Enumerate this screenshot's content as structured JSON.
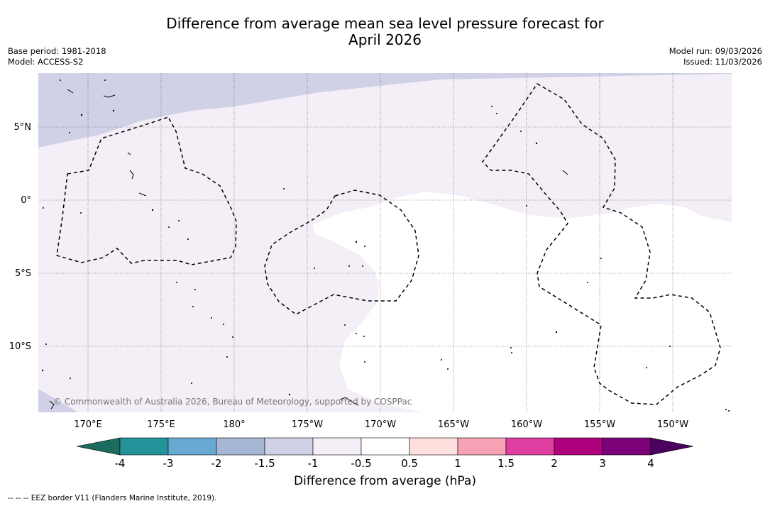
{
  "header": {
    "title_line1": "Difference from average mean sea level pressure forecast for",
    "title_line2": "April 2026",
    "base_period": "Base period: 1981-2018",
    "model": "Model: ACCESS-S2",
    "model_run": "Model run: 09/03/2026",
    "issued": "Issued: 11/03/2026"
  },
  "map": {
    "lat_labels": [
      "5°N",
      "0°",
      "5°S",
      "10°S"
    ],
    "lon_labels": [
      "170°E",
      "175°E",
      "180°",
      "175°W",
      "170°W",
      "165°W",
      "160°W",
      "155°W",
      "150°W"
    ],
    "copyright": "© Commonwealth of Australia 2026, Bureau of Meteorology, supported by COSPPac",
    "colors": {
      "band_-1.5_-1": "#d0d1e6",
      "band_-1_-0.5": "#f4eef7",
      "band_-0.5_0.5": "#ffffff",
      "eez_border": "#000000"
    }
  },
  "colorbar": {
    "ticks": [
      "-4",
      "-3",
      "-2",
      "-1.5",
      "-1",
      "-0.5",
      "0.5",
      "1",
      "1.5",
      "2",
      "3",
      "4"
    ],
    "colors": [
      "#1b6b5f",
      "#25939a",
      "#68a9d1",
      "#a6b7d6",
      "#d0d1e6",
      "#f4eef7",
      "#ffffff",
      "#fde0de",
      "#f7a1b5",
      "#dd3e9f",
      "#ae017e",
      "#7a0177",
      "#4a005f"
    ],
    "label": "Difference from average (hPa)"
  },
  "footnote": "-- -- -- EEZ border V11 (Flanders Marine Institute, 2019)."
}
